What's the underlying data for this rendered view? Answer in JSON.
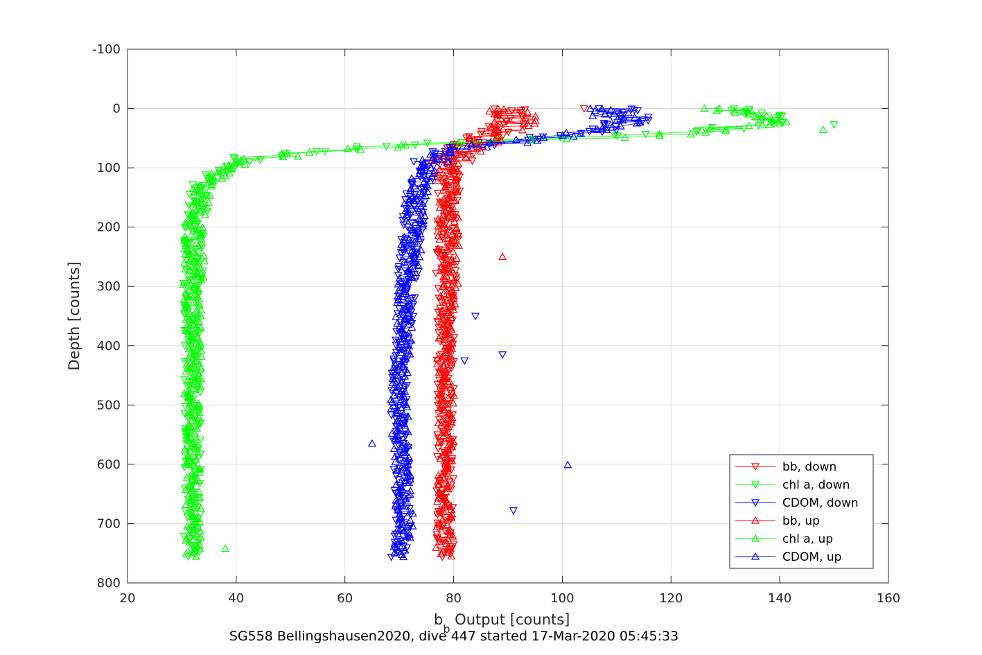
{
  "chart_data": {
    "type": "scatter",
    "title": "",
    "xlabel_main": "b",
    "xlabel_sub": "b",
    "xlabel_rest": " Output [counts]",
    "ylabel": "Depth [counts]",
    "caption": "SG558 Bellingshausen2020, dive 447 started 17-Mar-2020 05:45:33",
    "xlim": [
      20,
      160
    ],
    "ylim": [
      -100,
      800
    ],
    "y_reversed": true,
    "x_ticks": [
      20,
      40,
      60,
      80,
      100,
      120,
      140,
      160
    ],
    "y_ticks": [
      -100,
      0,
      100,
      200,
      300,
      400,
      500,
      600,
      700,
      800
    ],
    "x_tick_labels": [
      "20",
      "40",
      "60",
      "80",
      "100",
      "120",
      "140",
      "160"
    ],
    "y_tick_labels": [
      "-100",
      "0",
      "100",
      "200",
      "300",
      "400",
      "500",
      "600",
      "700",
      "800"
    ],
    "grid": true,
    "legend_position": "bottom-right",
    "series": [
      {
        "name": "bb, down",
        "color": "#ff0000",
        "marker": "triangle-down",
        "profile": [
          [
            0,
            89
          ],
          [
            20,
            91
          ],
          [
            40,
            87
          ],
          [
            60,
            84
          ],
          [
            80,
            80
          ],
          [
            100,
            79.5
          ],
          [
            150,
            79
          ],
          [
            200,
            79
          ],
          [
            300,
            78.5
          ],
          [
            400,
            78.5
          ],
          [
            500,
            78.5
          ],
          [
            600,
            78.5
          ],
          [
            700,
            78.5
          ],
          [
            750,
            78.5
          ]
        ]
      },
      {
        "name": "chl a, down",
        "color": "#00ff00",
        "marker": "triangle-down",
        "profile": [
          [
            0,
            134
          ],
          [
            20,
            140
          ],
          [
            40,
            125
          ],
          [
            55,
            85
          ],
          [
            65,
            62
          ],
          [
            80,
            44
          ],
          [
            100,
            38
          ],
          [
            120,
            34
          ],
          [
            150,
            33
          ],
          [
            200,
            32.5
          ],
          [
            300,
            32
          ],
          [
            400,
            32
          ],
          [
            500,
            32
          ],
          [
            600,
            32
          ],
          [
            700,
            32
          ],
          [
            750,
            32
          ]
        ]
      },
      {
        "name": "CDOM, down",
        "color": "#0000ff",
        "marker": "triangle-down",
        "profile": [
          [
            0,
            110
          ],
          [
            20,
            113
          ],
          [
            40,
            105
          ],
          [
            55,
            90
          ],
          [
            70,
            78
          ],
          [
            100,
            75
          ],
          [
            150,
            73
          ],
          [
            200,
            72.5
          ],
          [
            300,
            71.5
          ],
          [
            400,
            70.5
          ],
          [
            500,
            70
          ],
          [
            600,
            70.5
          ],
          [
            700,
            71
          ],
          [
            750,
            70
          ]
        ]
      },
      {
        "name": "bb, up",
        "color": "#ff0000",
        "marker": "triangle-up",
        "profile": [
          [
            0,
            90
          ],
          [
            20,
            92
          ],
          [
            40,
            88
          ],
          [
            60,
            84
          ],
          [
            80,
            80
          ],
          [
            100,
            79
          ],
          [
            150,
            79
          ],
          [
            200,
            79
          ],
          [
            300,
            79
          ],
          [
            400,
            78.5
          ],
          [
            500,
            78.5
          ],
          [
            600,
            78.5
          ],
          [
            700,
            78.5
          ],
          [
            750,
            78
          ]
        ]
      },
      {
        "name": "chl a, up",
        "color": "#00ff00",
        "marker": "triangle-up",
        "profile": [
          [
            0,
            130
          ],
          [
            25,
            138
          ],
          [
            45,
            120
          ],
          [
            58,
            80
          ],
          [
            70,
            58
          ],
          [
            85,
            44
          ],
          [
            100,
            38
          ],
          [
            130,
            34
          ],
          [
            160,
            33
          ],
          [
            200,
            32.5
          ],
          [
            300,
            32
          ],
          [
            400,
            32
          ],
          [
            500,
            32
          ],
          [
            600,
            32
          ],
          [
            700,
            32
          ],
          [
            750,
            32
          ]
        ]
      },
      {
        "name": "CDOM, up",
        "color": "#0000ff",
        "marker": "triangle-up",
        "profile": [
          [
            0,
            107
          ],
          [
            25,
            112
          ],
          [
            45,
            102
          ],
          [
            60,
            88
          ],
          [
            75,
            77
          ],
          [
            100,
            75
          ],
          [
            150,
            73
          ],
          [
            200,
            72.5
          ],
          [
            300,
            71.5
          ],
          [
            400,
            70.5
          ],
          [
            500,
            70
          ],
          [
            600,
            70.5
          ],
          [
            700,
            71
          ],
          [
            750,
            70
          ]
        ]
      }
    ],
    "outliers": [
      {
        "series": "bb, up",
        "x": 89,
        "y": 250
      },
      {
        "series": "CDOM, down",
        "x": 89,
        "y": 415
      },
      {
        "series": "CDOM, up",
        "x": 101,
        "y": 601
      },
      {
        "series": "CDOM, down",
        "x": 91,
        "y": 678
      },
      {
        "series": "CDOM, up",
        "x": 65,
        "y": 565
      },
      {
        "series": "bb, down",
        "x": 104,
        "y": 0
      },
      {
        "series": "chl a, down",
        "x": 150,
        "y": 27
      },
      {
        "series": "chl a, up",
        "x": 148,
        "y": 36
      },
      {
        "series": "chl a, up",
        "x": 38,
        "y": 742
      },
      {
        "series": "CDOM, down",
        "x": 84,
        "y": 350
      },
      {
        "series": "CDOM, down",
        "x": 82,
        "y": 425
      }
    ]
  }
}
